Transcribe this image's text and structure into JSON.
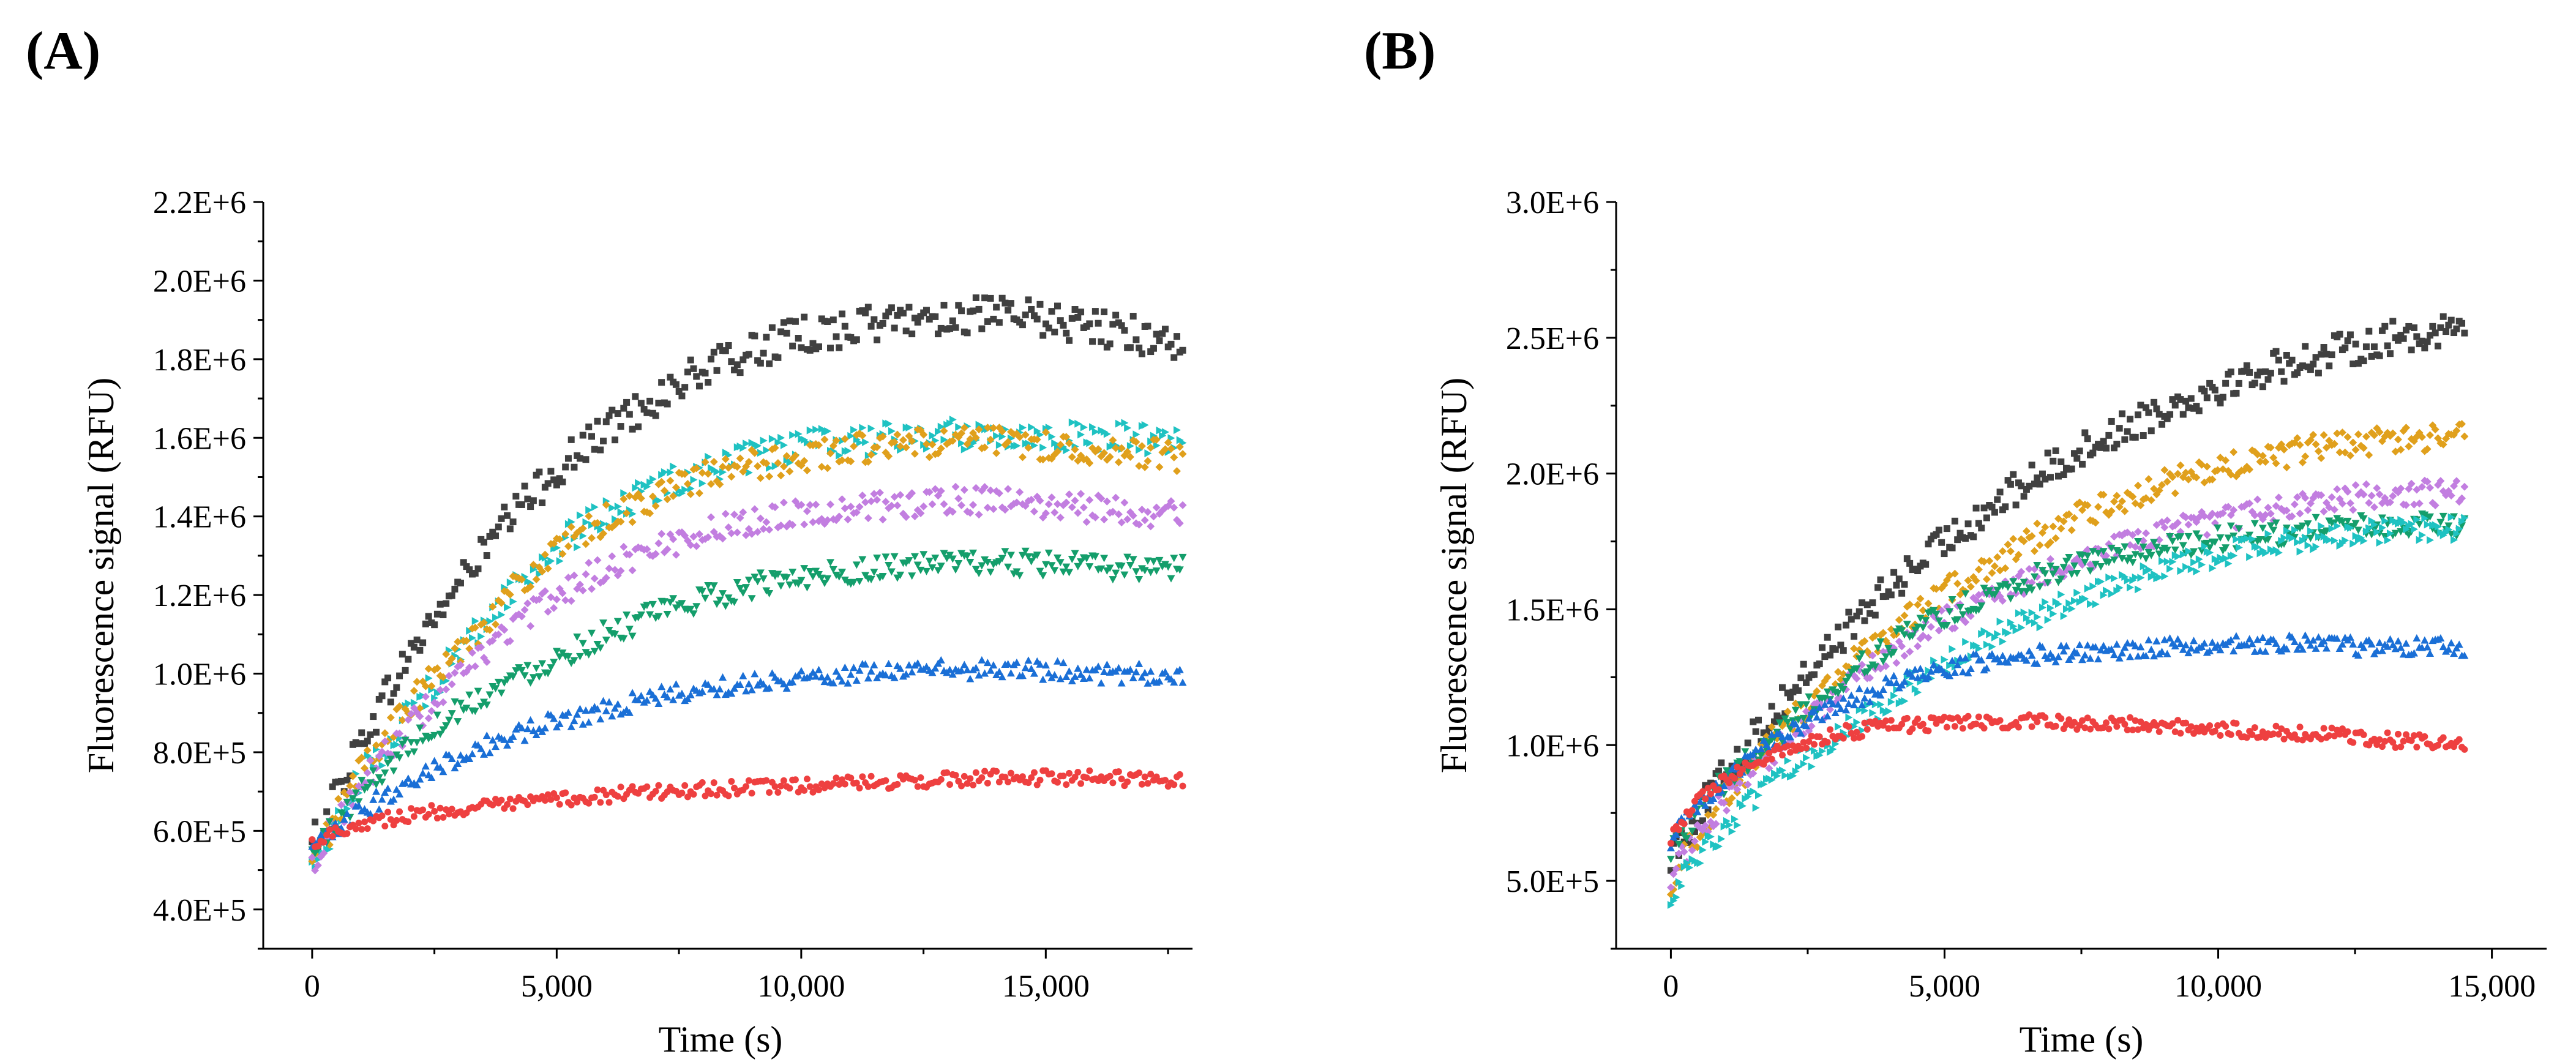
{
  "figure": {
    "panel_labels": [
      "(A)",
      "(B)"
    ]
  },
  "colors": {
    "axis": "#000000",
    "series": [
      "#404040",
      "#1fc2c2",
      "#e0a01c",
      "#c27ee0",
      "#149e6b",
      "#1a6fd6",
      "#ee4040"
    ]
  },
  "chart_data": [
    {
      "panel": "(A)",
      "type": "scatter",
      "title": "",
      "xlabel": "Time (s)",
      "ylabel": "Fluorescence signal (RFU)",
      "xlim": [
        -1000,
        18000
      ],
      "ylim": [
        300000,
        2200000
      ],
      "xticks": [
        0,
        5000,
        10000,
        15000
      ],
      "xtick_labels": [
        "0",
        "5,000",
        "10,000",
        "15,000"
      ],
      "yticks": [
        400000,
        600000,
        800000,
        1000000,
        1200000,
        1400000,
        1600000,
        1800000,
        2000000,
        2200000
      ],
      "ytick_labels": [
        "4.0E+5",
        "6.0E+5",
        "8.0E+5",
        "1.0E+6",
        "1.2E+6",
        "1.4E+6",
        "1.6E+6",
        "1.8E+6",
        "2.0E+6",
        "2.2E+6"
      ],
      "grid": false,
      "legend": "none",
      "series": [
        {
          "name": "black",
          "marker": "square",
          "color": "#404040",
          "x": [
            0,
            500,
            1000,
            2000,
            3000,
            4000,
            5000,
            6000,
            7000,
            8000,
            9000,
            10000,
            11000,
            12000,
            13000,
            14000,
            15000,
            16000,
            17000,
            17800
          ],
          "y": [
            560000,
            700000,
            830000,
            1050000,
            1230000,
            1390000,
            1520000,
            1620000,
            1700000,
            1770000,
            1820000,
            1860000,
            1880000,
            1900000,
            1910000,
            1910000,
            1900000,
            1880000,
            1860000,
            1840000
          ]
        },
        {
          "name": "cyan",
          "marker": "triangle-right",
          "color": "#1fc2c2",
          "x": [
            0,
            500,
            1000,
            2000,
            3000,
            4000,
            5000,
            6000,
            7000,
            8000,
            9000,
            10000,
            11000,
            12000,
            13000,
            14000,
            15000,
            16000,
            17000,
            17800
          ],
          "y": [
            510000,
            620000,
            730000,
            900000,
            1050000,
            1200000,
            1320000,
            1410000,
            1470000,
            1520000,
            1550000,
            1580000,
            1590000,
            1600000,
            1610000,
            1610000,
            1610000,
            1600000,
            1600000,
            1590000
          ]
        },
        {
          "name": "orange",
          "marker": "diamond",
          "color": "#e0a01c",
          "x": [
            0,
            500,
            1000,
            2000,
            3000,
            4000,
            5000,
            6000,
            7000,
            8000,
            9000,
            10000,
            11000,
            12000,
            13000,
            14000,
            15000,
            16000,
            17000,
            17800
          ],
          "y": [
            510000,
            640000,
            760000,
            920000,
            1060000,
            1200000,
            1310000,
            1390000,
            1450000,
            1500000,
            1530000,
            1550000,
            1570000,
            1580000,
            1590000,
            1590000,
            1580000,
            1570000,
            1560000,
            1550000
          ]
        },
        {
          "name": "violet",
          "marker": "diamond",
          "color": "#c27ee0",
          "x": [
            0,
            500,
            1000,
            2000,
            3000,
            4000,
            5000,
            6000,
            7000,
            8000,
            9000,
            10000,
            11000,
            12000,
            13000,
            14000,
            15000,
            16000,
            17000,
            17800
          ],
          "y": [
            520000,
            620000,
            720000,
            870000,
            990000,
            1110000,
            1200000,
            1270000,
            1320000,
            1360000,
            1390000,
            1410000,
            1420000,
            1430000,
            1440000,
            1440000,
            1430000,
            1420000,
            1410000,
            1410000
          ]
        },
        {
          "name": "green",
          "marker": "triangle-down",
          "color": "#149e6b",
          "x": [
            0,
            500,
            1000,
            2000,
            3000,
            4000,
            5000,
            6000,
            7000,
            8000,
            9000,
            10000,
            11000,
            12000,
            13000,
            14000,
            15000,
            16000,
            17000,
            17800
          ],
          "y": [
            540000,
            620000,
            700000,
            820000,
            910000,
            980000,
            1040000,
            1100000,
            1150000,
            1190000,
            1220000,
            1250000,
            1260000,
            1270000,
            1280000,
            1280000,
            1280000,
            1270000,
            1270000,
            1270000
          ]
        },
        {
          "name": "blue",
          "marker": "triangle-up",
          "color": "#1a6fd6",
          "x": [
            0,
            500,
            1000,
            2000,
            3000,
            4000,
            5000,
            6000,
            7000,
            8000,
            9000,
            10000,
            11000,
            12000,
            13000,
            14000,
            15000,
            16000,
            17000,
            17800
          ],
          "y": [
            550000,
            600000,
            650000,
            730000,
            790000,
            840000,
            880000,
            910000,
            940000,
            960000,
            980000,
            990000,
            1000000,
            1010000,
            1010000,
            1010000,
            1010000,
            1000000,
            1000000,
            1000000
          ]
        },
        {
          "name": "red",
          "marker": "circle",
          "color": "#ee4040",
          "x": [
            0,
            500,
            1000,
            2000,
            3000,
            4000,
            5000,
            6000,
            7000,
            8000,
            9000,
            10000,
            11000,
            12000,
            13000,
            14000,
            15000,
            16000,
            17000,
            17800
          ],
          "y": [
            570000,
            600000,
            620000,
            640000,
            655000,
            665000,
            680000,
            690000,
            700000,
            705000,
            710000,
            715000,
            720000,
            725000,
            730000,
            735000,
            735000,
            735000,
            730000,
            725000
          ]
        }
      ]
    },
    {
      "panel": "(B)",
      "type": "scatter",
      "title": "",
      "xlabel": "Time (s)",
      "ylabel": "Fluorescence signal (RFU)",
      "xlim": [
        -1000,
        16000
      ],
      "ylim": [
        250000,
        3000000
      ],
      "xticks": [
        0,
        5000,
        10000,
        15000
      ],
      "xtick_labels": [
        "0",
        "5,000",
        "10,000",
        "15,000"
      ],
      "yticks": [
        500000,
        1000000,
        1500000,
        2000000,
        2500000,
        3000000
      ],
      "ytick_labels": [
        "5.0E+5",
        "1.0E+6",
        "1.5E+6",
        "2.0E+6",
        "2.5E+6",
        "3.0E+6"
      ],
      "grid": false,
      "legend": "none",
      "series": [
        {
          "name": "black",
          "marker": "square",
          "color": "#404040",
          "x": [
            0,
            500,
            1000,
            2000,
            3000,
            4000,
            5000,
            6000,
            7000,
            8000,
            9000,
            10000,
            11000,
            12000,
            13000,
            14000,
            14500
          ],
          "y": [
            600000,
            750000,
            900000,
            1150000,
            1380000,
            1580000,
            1750000,
            1900000,
            2030000,
            2140000,
            2240000,
            2320000,
            2390000,
            2440000,
            2490000,
            2530000,
            2540000
          ]
        },
        {
          "name": "orange",
          "marker": "diamond",
          "color": "#e0a01c",
          "x": [
            0,
            500,
            1000,
            2000,
            3000,
            4000,
            5000,
            6000,
            7000,
            8000,
            9000,
            10000,
            11000,
            12000,
            13000,
            14000,
            14500
          ],
          "y": [
            500000,
            680000,
            820000,
            1050000,
            1250000,
            1420000,
            1560000,
            1690000,
            1800000,
            1890000,
            1960000,
            2020000,
            2060000,
            2100000,
            2120000,
            2140000,
            2140000
          ]
        },
        {
          "name": "violet",
          "marker": "diamond",
          "color": "#c27ee0",
          "x": [
            0,
            500,
            1000,
            2000,
            3000,
            4000,
            5000,
            6000,
            7000,
            8000,
            9000,
            10000,
            11000,
            12000,
            13000,
            14000,
            14500
          ],
          "y": [
            520000,
            680000,
            800000,
            1000000,
            1180000,
            1330000,
            1460000,
            1560000,
            1650000,
            1720000,
            1780000,
            1830000,
            1870000,
            1900000,
            1920000,
            1930000,
            1940000
          ]
        },
        {
          "name": "green",
          "marker": "triangle-down",
          "color": "#149e6b",
          "x": [
            0,
            500,
            1000,
            2000,
            3000,
            4000,
            5000,
            6000,
            7000,
            8000,
            9000,
            10000,
            11000,
            12000,
            13000,
            14000,
            14500
          ],
          "y": [
            620000,
            760000,
            870000,
            1050000,
            1220000,
            1370000,
            1480000,
            1570000,
            1640000,
            1690000,
            1730000,
            1760000,
            1780000,
            1800000,
            1800000,
            1810000,
            1810000
          ]
        },
        {
          "name": "cyan",
          "marker": "triangle-right",
          "color": "#1fc2c2",
          "x": [
            0,
            500,
            1000,
            2000,
            3000,
            4000,
            5000,
            6000,
            7000,
            8000,
            9000,
            10000,
            11000,
            12000,
            13000,
            14000,
            14500
          ],
          "y": [
            450000,
            580000,
            700000,
            880000,
            1030000,
            1170000,
            1300000,
            1410000,
            1500000,
            1580000,
            1650000,
            1700000,
            1740000,
            1770000,
            1790000,
            1800000,
            1800000
          ]
        },
        {
          "name": "blue",
          "marker": "triangle-up",
          "color": "#1a6fd6",
          "x": [
            0,
            500,
            1000,
            2000,
            3000,
            4000,
            5000,
            6000,
            7000,
            8000,
            9000,
            10000,
            11000,
            12000,
            13000,
            14000,
            14500
          ],
          "y": [
            650000,
            780000,
            880000,
            1030000,
            1140000,
            1220000,
            1280000,
            1320000,
            1340000,
            1350000,
            1360000,
            1370000,
            1370000,
            1370000,
            1360000,
            1360000,
            1360000
          ]
        },
        {
          "name": "red",
          "marker": "circle",
          "color": "#ee4040",
          "x": [
            0,
            500,
            1000,
            2000,
            3000,
            4000,
            5000,
            6000,
            7000,
            8000,
            9000,
            10000,
            11000,
            12000,
            13000,
            14000,
            14500
          ],
          "y": [
            660000,
            790000,
            880000,
            980000,
            1040000,
            1070000,
            1080000,
            1085000,
            1085000,
            1080000,
            1070000,
            1060000,
            1050000,
            1040000,
            1020000,
            1010000,
            1000000
          ]
        }
      ]
    }
  ]
}
